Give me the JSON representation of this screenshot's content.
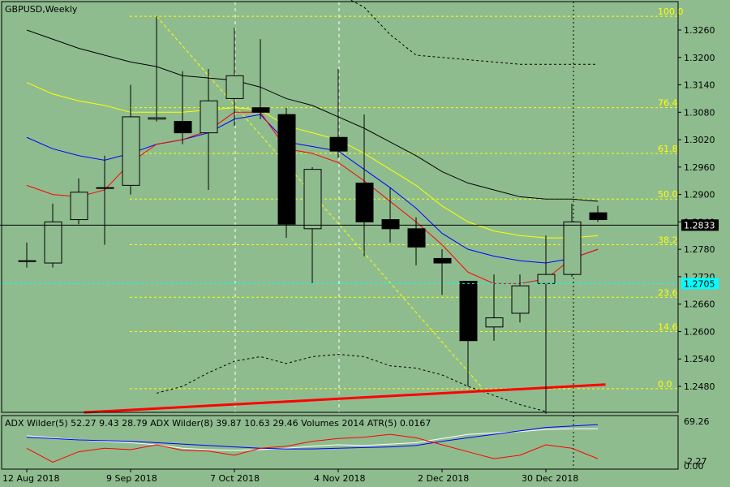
{
  "window": {
    "symbol_label": "GBPUSD,Weekly"
  },
  "indicator_text": "ADX Wilder(5) 52.27 9.43 28.79 ADX Wilder(8) 39.87 10.63 29.46 Volumes 2014 ATR(5) 0.0167",
  "current_price": "1.2833",
  "cyan_price": "1.2705",
  "indicator_axis": {
    "top": "69.26",
    "mid": "-2.27",
    "bottom": "0.00"
  },
  "colors": {
    "background": "#8fbc8f",
    "bull_candle": "#8fbc8f",
    "bear_candle": "#000000",
    "fibo": "#ffff00",
    "ma_red": "#ff0000",
    "ma_blue": "#0000ff",
    "ma_yellow": "#ffff00",
    "band": "#000000",
    "trendline": "#ff0000",
    "cyan_line": "#00ffff",
    "adx_white": "#ffffff"
  },
  "chart_data": {
    "type": "candlestick",
    "title": "GBPUSD,Weekly",
    "ylim": [
      1.2435,
      1.3302
    ],
    "y_ticks": [
      "1.3260",
      "1.3200",
      "1.3140",
      "1.3080",
      "1.3020",
      "1.2960",
      "1.2900",
      "1.2840",
      "1.2780",
      "1.2720",
      "1.2660",
      "1.2600",
      "1.2540",
      "1.2480"
    ],
    "x_ticks": [
      {
        "label": "12 Aug 2018",
        "index": 0
      },
      {
        "label": "9 Sep 2018",
        "index": 4
      },
      {
        "label": "7 Oct 2018",
        "index": 8
      },
      {
        "label": "4 Nov 2018",
        "index": 12
      },
      {
        "label": "2 Dec 2018",
        "index": 16
      },
      {
        "label": "30 Dec 2018",
        "index": 20
      }
    ],
    "candles": [
      {
        "o": 1.2755,
        "h": 1.2795,
        "l": 1.274,
        "c": 1.2755
      },
      {
        "o": 1.275,
        "h": 1.288,
        "l": 1.274,
        "c": 1.284
      },
      {
        "o": 1.2845,
        "h": 1.2935,
        "l": 1.2835,
        "c": 1.2905
      },
      {
        "o": 1.2915,
        "h": 1.2985,
        "l": 1.279,
        "c": 1.2915
      },
      {
        "o": 1.292,
        "h": 1.314,
        "l": 1.29,
        "c": 1.307
      },
      {
        "o": 1.3065,
        "h": 1.329,
        "l": 1.306,
        "c": 1.3068
      },
      {
        "o": 1.306,
        "h": 1.317,
        "l": 1.301,
        "c": 1.3035
      },
      {
        "o": 1.3035,
        "h": 1.3175,
        "l": 1.291,
        "c": 1.3105
      },
      {
        "o": 1.311,
        "h": 1.3265,
        "l": 1.305,
        "c": 1.316
      },
      {
        "o": 1.309,
        "h": 1.324,
        "l": 1.3065,
        "c": 1.308
      },
      {
        "o": 1.3075,
        "h": 1.309,
        "l": 1.2805,
        "c": 1.2835
      },
      {
        "o": 1.2825,
        "h": 1.296,
        "l": 1.2705,
        "c": 1.2955
      },
      {
        "o": 1.3025,
        "h": 1.3175,
        "l": 1.298,
        "c": 1.2995
      },
      {
        "o": 1.2925,
        "h": 1.3075,
        "l": 1.2765,
        "c": 1.284
      },
      {
        "o": 1.2845,
        "h": 1.2915,
        "l": 1.2795,
        "c": 1.2825
      },
      {
        "o": 1.2825,
        "h": 1.285,
        "l": 1.2745,
        "c": 1.2785
      },
      {
        "o": 1.276,
        "h": 1.278,
        "l": 1.268,
        "c": 1.275
      },
      {
        "o": 1.271,
        "h": 1.271,
        "l": 1.248,
        "c": 1.258
      },
      {
        "o": 1.261,
        "h": 1.2725,
        "l": 1.258,
        "c": 1.263
      },
      {
        "o": 1.264,
        "h": 1.2725,
        "l": 1.262,
        "c": 1.27
      },
      {
        "o": 1.2705,
        "h": 1.281,
        "l": 1.242,
        "c": 1.2725
      },
      {
        "o": 1.2725,
        "h": 1.288,
        "l": 1.272,
        "c": 1.284
      },
      {
        "o": 1.286,
        "h": 1.2875,
        "l": 1.284,
        "c": 1.2845
      }
    ],
    "fibo_levels": [
      {
        "label": "100.0",
        "value": 1.329
      },
      {
        "label": "76.4",
        "value": 1.309
      },
      {
        "label": "61.8",
        "value": 1.299
      },
      {
        "label": "50.0",
        "value": 1.289
      },
      {
        "label": "38.2",
        "value": 1.279
      },
      {
        "label": "23.6",
        "value": 1.2675
      },
      {
        "label": "14.6",
        "value": 1.26
      },
      {
        "label": "0.0",
        "value": 1.2475
      }
    ],
    "ma_red": [
      1.292,
      1.29,
      1.2895,
      1.291,
      1.297,
      1.301,
      1.302,
      1.304,
      1.308,
      1.308,
      1.3,
      1.299,
      1.297,
      1.293,
      1.2885,
      1.284,
      1.279,
      1.273,
      1.2705,
      1.2705,
      1.2715,
      1.276,
      1.278
    ],
    "ma_blue": [
      1.3025,
      1.3,
      1.2985,
      1.2975,
      1.299,
      1.301,
      1.302,
      1.3035,
      1.3065,
      1.3075,
      1.3015,
      1.3005,
      1.2995,
      1.2955,
      1.2915,
      1.287,
      1.2815,
      1.278,
      1.2765,
      1.2755,
      1.275,
      1.276,
      1.278
    ],
    "ma_yellow": [
      1.3145,
      1.312,
      1.3105,
      1.3095,
      1.308,
      1.308,
      1.308,
      1.3085,
      1.309,
      1.3085,
      1.305,
      1.3035,
      1.302,
      1.299,
      1.2955,
      1.292,
      1.2875,
      1.284,
      1.282,
      1.281,
      1.2805,
      1.2805,
      1.281
    ],
    "band_upper": [
      1.326,
      1.324,
      1.322,
      1.3205,
      1.319,
      1.318,
      1.316,
      1.3155,
      1.315,
      1.3135,
      1.311,
      1.3095,
      1.307,
      1.3045,
      1.3015,
      1.2985,
      1.295,
      1.2925,
      1.291,
      1.2895,
      1.289,
      1.289,
      1.2885
    ],
    "band_far": [
      null,
      null,
      null,
      null,
      null,
      null,
      null,
      null,
      null,
      null,
      null,
      null,
      1.334,
      1.331,
      1.325,
      1.3205,
      1.32,
      1.3195,
      1.319,
      1.3185,
      1.3185,
      1.3185,
      1.3185
    ],
    "band_lower": [
      null,
      null,
      null,
      null,
      null,
      1.2465,
      1.248,
      1.251,
      1.2535,
      1.2545,
      1.253,
      1.2545,
      1.255,
      1.2545,
      1.2525,
      1.252,
      1.2505,
      1.248,
      1.246,
      1.244,
      1.2425,
      null,
      null
    ],
    "trendline": {
      "x": [
        2.2,
        22.3
      ],
      "y": [
        1.2423,
        1.2484
      ]
    },
    "diag_line": {
      "x": [
        5,
        17.5
      ],
      "y": [
        1.329,
        1.248
      ]
    },
    "vlines_white": [
      8,
      12
    ],
    "vline_dark": 21,
    "adx_series": {
      "white": [
        48,
        45,
        42,
        40,
        38,
        35,
        30,
        28,
        27,
        28,
        30,
        33,
        35,
        34,
        36,
        38,
        44,
        50,
        52,
        54,
        57,
        58,
        58
      ],
      "blue": [
        46,
        44,
        42,
        41,
        40,
        38,
        36,
        34,
        32,
        30,
        29,
        29,
        30,
        31,
        32,
        34,
        40,
        45,
        50,
        55,
        60,
        62,
        64
      ],
      "red": [
        30,
        10,
        25,
        30,
        28,
        35,
        27,
        26,
        20,
        30,
        33,
        40,
        44,
        46,
        50,
        45,
        35,
        25,
        15,
        20,
        35,
        30,
        15
      ]
    }
  }
}
